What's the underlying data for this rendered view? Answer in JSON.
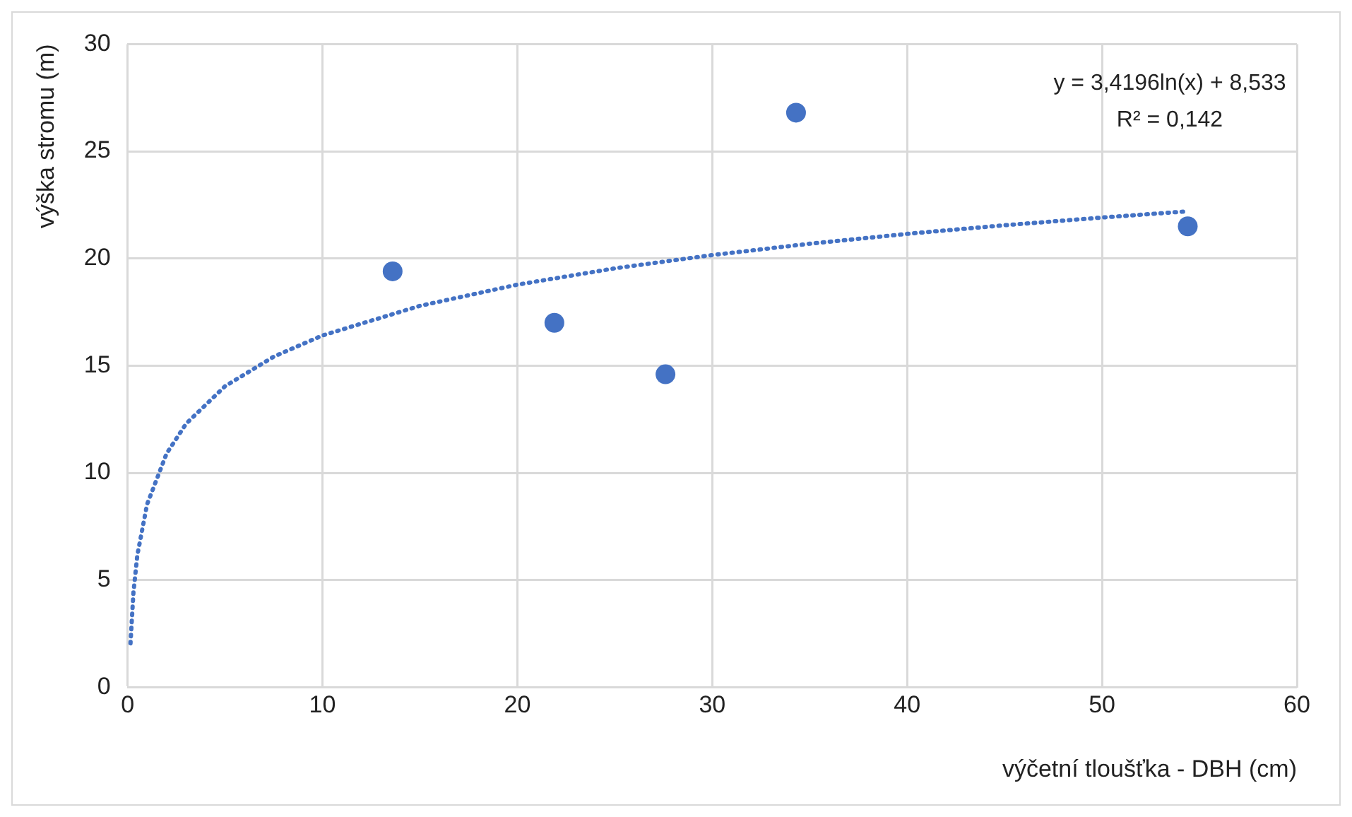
{
  "chart_data": {
    "type": "scatter",
    "xlabel": "výčetní tloušťka - DBH (cm)",
    "ylabel": "výška stromu (m)",
    "xlim": [
      0,
      60
    ],
    "xticks": [
      0,
      10,
      20,
      30,
      40,
      50,
      60
    ],
    "ylim": [
      0,
      30
    ],
    "yticks": [
      0,
      5,
      10,
      15,
      20,
      25,
      30
    ],
    "grid": true,
    "legend": false,
    "annotations": [
      "y = 3,4196ln(x) + 8,533",
      "R² = 0,142"
    ],
    "series": [
      {
        "color": "#4472c4",
        "marker": "circle",
        "x": [
          13.6,
          21.9,
          27.6,
          34.3,
          54.4
        ],
        "values": [
          19.4,
          17.0,
          14.6,
          26.8,
          21.5
        ]
      },
      {
        "type": "line",
        "color": "#4472c4",
        "marker": "none",
        "line_style": "dotted",
        "x": [
          0.15,
          0.3,
          0.5,
          1,
          2,
          3,
          5,
          7.5,
          10,
          15,
          20,
          25,
          30,
          35,
          40,
          45,
          50,
          54.4
        ],
        "values": [
          2.05,
          4.42,
          6.16,
          8.53,
          10.9,
          12.29,
          14.04,
          15.42,
          16.41,
          17.79,
          18.78,
          19.54,
          20.16,
          20.69,
          21.15,
          21.55,
          21.91,
          22.2
        ]
      }
    ]
  }
}
